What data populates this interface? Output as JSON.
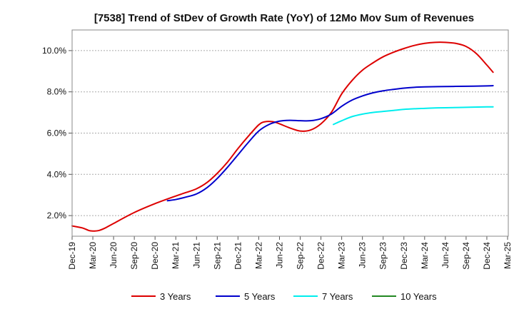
{
  "chart_data": {
    "type": "line",
    "title": "[7538]  Trend of StDev of Growth Rate (YoY) of 12Mo Mov Sum of Revenues",
    "xlabel": "",
    "ylabel": "",
    "ylim": [
      1.0,
      11.0
    ],
    "y_ticks": [
      2.0,
      4.0,
      6.0,
      8.0,
      10.0
    ],
    "y_tick_labels": [
      "2.0%",
      "4.0%",
      "6.0%",
      "8.0%",
      "10.0%"
    ],
    "x_tick_labels": [
      "Dec-19",
      "Mar-20",
      "Jun-20",
      "Sep-20",
      "Dec-20",
      "Mar-21",
      "Jun-21",
      "Sep-21",
      "Dec-21",
      "Mar-22",
      "Jun-22",
      "Sep-22",
      "Dec-22",
      "Mar-23",
      "Jun-23",
      "Sep-23",
      "Dec-23",
      "Mar-24",
      "Jun-24",
      "Sep-24",
      "Dec-24",
      "Mar-25"
    ],
    "grid": "horizontal dotted",
    "legend_position": "bottom",
    "series": [
      {
        "name": "3 Years",
        "color": "#dd0000",
        "points": [
          [
            0,
            1.5
          ],
          [
            0.5,
            1.4
          ],
          [
            0.8,
            1.28
          ],
          [
            1,
            1.25
          ],
          [
            1.3,
            1.28
          ],
          [
            1.6,
            1.4
          ],
          [
            2,
            1.62
          ],
          [
            3,
            2.15
          ],
          [
            4,
            2.58
          ],
          [
            5,
            2.95
          ],
          [
            5.5,
            3.12
          ],
          [
            6,
            3.3
          ],
          [
            6.5,
            3.6
          ],
          [
            7,
            4.05
          ],
          [
            7.5,
            4.6
          ],
          [
            8,
            5.25
          ],
          [
            8.5,
            5.85
          ],
          [
            9,
            6.4
          ],
          [
            9.3,
            6.55
          ],
          [
            9.7,
            6.55
          ],
          [
            10,
            6.45
          ],
          [
            10.5,
            6.25
          ],
          [
            11,
            6.1
          ],
          [
            11.5,
            6.15
          ],
          [
            12,
            6.45
          ],
          [
            12.5,
            7.0
          ],
          [
            13,
            7.9
          ],
          [
            13.5,
            8.55
          ],
          [
            14,
            9.05
          ],
          [
            14.5,
            9.4
          ],
          [
            15,
            9.7
          ],
          [
            15.5,
            9.92
          ],
          [
            16,
            10.1
          ],
          [
            16.5,
            10.25
          ],
          [
            17,
            10.35
          ],
          [
            17.5,
            10.4
          ],
          [
            18,
            10.4
          ],
          [
            18.5,
            10.35
          ],
          [
            19,
            10.2
          ],
          [
            19.5,
            9.85
          ],
          [
            20,
            9.3
          ],
          [
            20.3,
            8.95
          ]
        ]
      },
      {
        "name": "5 Years",
        "color": "#0000cc",
        "points": [
          [
            4.6,
            2.72
          ],
          [
            5,
            2.78
          ],
          [
            5.5,
            2.9
          ],
          [
            6,
            3.05
          ],
          [
            6.5,
            3.35
          ],
          [
            7,
            3.8
          ],
          [
            7.5,
            4.35
          ],
          [
            8,
            4.95
          ],
          [
            8.5,
            5.55
          ],
          [
            9,
            6.1
          ],
          [
            9.5,
            6.42
          ],
          [
            10,
            6.58
          ],
          [
            10.5,
            6.62
          ],
          [
            11,
            6.6
          ],
          [
            11.5,
            6.6
          ],
          [
            12,
            6.7
          ],
          [
            12.5,
            6.92
          ],
          [
            13,
            7.3
          ],
          [
            13.5,
            7.6
          ],
          [
            14,
            7.8
          ],
          [
            14.5,
            7.95
          ],
          [
            15,
            8.05
          ],
          [
            15.5,
            8.12
          ],
          [
            16,
            8.18
          ],
          [
            16.5,
            8.22
          ],
          [
            17,
            8.24
          ],
          [
            18,
            8.26
          ],
          [
            19,
            8.27
          ],
          [
            20,
            8.29
          ],
          [
            20.3,
            8.3
          ]
        ]
      },
      {
        "name": "7 Years",
        "color": "#00eeee",
        "points": [
          [
            12.6,
            6.42
          ],
          [
            13,
            6.6
          ],
          [
            13.5,
            6.8
          ],
          [
            14,
            6.92
          ],
          [
            14.5,
            7.0
          ],
          [
            15,
            7.05
          ],
          [
            15.5,
            7.1
          ],
          [
            16,
            7.15
          ],
          [
            16.5,
            7.18
          ],
          [
            17,
            7.2
          ],
          [
            17.5,
            7.22
          ],
          [
            18,
            7.23
          ],
          [
            19,
            7.25
          ],
          [
            20,
            7.27
          ],
          [
            20.3,
            7.27
          ]
        ]
      },
      {
        "name": "10 Years",
        "color": "#228822",
        "points": []
      }
    ]
  }
}
